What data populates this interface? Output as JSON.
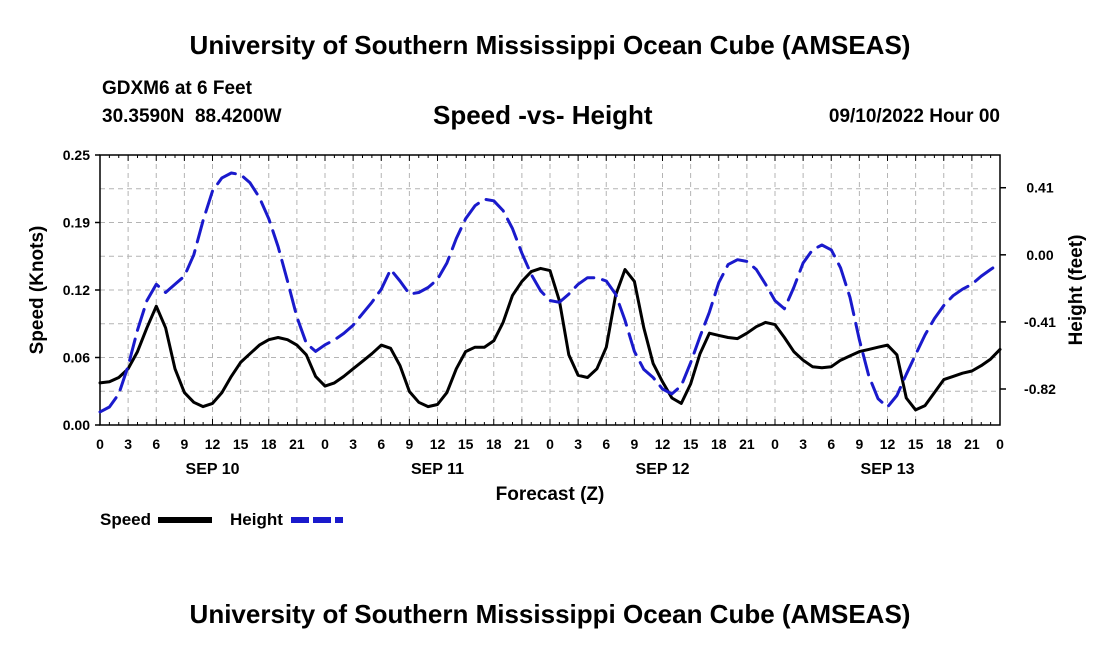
{
  "page": {
    "title": "University of Southern Mississippi Ocean Cube (AMSEAS)",
    "station": "GDXM6 at 6 Feet",
    "coords": "30.3590N  88.4200W",
    "subtitle": "Speed -vs- Height",
    "date": "09/10/2022 Hour 00",
    "footer_title": "University of Southern Mississippi Ocean Cube (AMSEAS)"
  },
  "legend": {
    "speed_label": "Speed",
    "height_label": "Height"
  },
  "colors": {
    "speed": "#000000",
    "height": "#1a1acc",
    "grid": "#b4b4b4"
  },
  "chart_data": {
    "type": "line",
    "title": "Speed -vs- Height",
    "xlabel": "Forecast (Z)",
    "ylabel_left": "Speed (Knots)",
    "ylabel_right": "Height (feet)",
    "xlim": [
      0,
      96
    ],
    "ylim_left": [
      0,
      0.25
    ],
    "ylim_right": [
      -1.04,
      0.61
    ],
    "left_ticks": [
      {
        "value": 0,
        "label": "0.00"
      },
      {
        "value": 0.0625,
        "label": "0.06"
      },
      {
        "value": 0.125,
        "label": "0.12"
      },
      {
        "value": 0.1875,
        "label": "0.19"
      },
      {
        "value": 0.25,
        "label": "0.25"
      }
    ],
    "right_ticks": [
      {
        "value": 0.41,
        "label": "0.41"
      },
      {
        "value": 0.0,
        "label": "0.00"
      },
      {
        "value": -0.41,
        "label": "-0.41"
      },
      {
        "value": -0.82,
        "label": "-0.82"
      }
    ],
    "x_ticks": [
      "0",
      "3",
      "6",
      "9",
      "12",
      "15",
      "18",
      "21",
      "0",
      "3",
      "6",
      "9",
      "12",
      "15",
      "18",
      "21",
      "0",
      "3",
      "6",
      "9",
      "12",
      "15",
      "18",
      "21",
      "0",
      "3",
      "6",
      "9",
      "12",
      "15",
      "18",
      "21",
      "0"
    ],
    "day_labels": [
      {
        "hour": 12,
        "label": "SEP 10"
      },
      {
        "hour": 36,
        "label": "SEP 11"
      },
      {
        "hour": 60,
        "label": "SEP 12"
      },
      {
        "hour": 84,
        "label": "SEP 13"
      }
    ],
    "series": [
      {
        "name": "Speed",
        "axis": "left",
        "style": "solid",
        "x": [
          0,
          1,
          2,
          3,
          4,
          5,
          6,
          7,
          8,
          9,
          10,
          11,
          12,
          13,
          14,
          15,
          16,
          17,
          18,
          19,
          20,
          21,
          22,
          23,
          24,
          25,
          26,
          27,
          28,
          29,
          30,
          31,
          32,
          33,
          34,
          35,
          36,
          37,
          38,
          39,
          40,
          41,
          42,
          43,
          44,
          45,
          46,
          47,
          48,
          49,
          50,
          51,
          52,
          53,
          54,
          55,
          56,
          57,
          58,
          59,
          60,
          61,
          62,
          63,
          64,
          65,
          66,
          67,
          68,
          69,
          70,
          71,
          72,
          73,
          74,
          75,
          76,
          77,
          78,
          79,
          80,
          81,
          82,
          83,
          84,
          85,
          86,
          87,
          88,
          89,
          90,
          91,
          92,
          93,
          94,
          95,
          96
        ],
        "values": [
          0.039,
          0.04,
          0.044,
          0.052,
          0.068,
          0.09,
          0.11,
          0.09,
          0.052,
          0.03,
          0.021,
          0.017,
          0.02,
          0.03,
          0.045,
          0.058,
          0.066,
          0.074,
          0.079,
          0.081,
          0.079,
          0.074,
          0.065,
          0.045,
          0.036,
          0.039,
          0.045,
          0.052,
          0.059,
          0.066,
          0.074,
          0.071,
          0.055,
          0.031,
          0.021,
          0.017,
          0.019,
          0.03,
          0.052,
          0.068,
          0.072,
          0.072,
          0.078,
          0.095,
          0.12,
          0.133,
          0.142,
          0.145,
          0.143,
          0.115,
          0.065,
          0.046,
          0.044,
          0.052,
          0.072,
          0.12,
          0.144,
          0.133,
          0.09,
          0.057,
          0.04,
          0.025,
          0.02,
          0.038,
          0.066,
          0.085,
          0.083,
          0.081,
          0.08,
          0.085,
          0.091,
          0.095,
          0.093,
          0.081,
          0.068,
          0.06,
          0.054,
          0.053,
          0.054,
          0.06,
          0.064,
          0.068,
          0.07,
          0.072,
          0.074,
          0.065,
          0.025,
          0.014,
          0.018,
          0.03,
          0.042,
          0.045,
          0.048,
          0.05,
          0.055,
          0.061,
          0.07
        ]
      },
      {
        "name": "Height",
        "axis": "right",
        "style": "dashed",
        "x": [
          0,
          1,
          2,
          3,
          4,
          5,
          6,
          7,
          8,
          9,
          10,
          11,
          12,
          13,
          14,
          15,
          16,
          17,
          18,
          19,
          20,
          21,
          22,
          23,
          24,
          25,
          26,
          27,
          28,
          29,
          30,
          31,
          32,
          33,
          34,
          35,
          36,
          37,
          38,
          39,
          40,
          41,
          42,
          43,
          44,
          45,
          46,
          47,
          48,
          49,
          50,
          51,
          52,
          53,
          54,
          55,
          56,
          57,
          58,
          59,
          60,
          61,
          62,
          63,
          64,
          65,
          66,
          67,
          68,
          69,
          70,
          71,
          72,
          73,
          74,
          75,
          76,
          77,
          78,
          79,
          80,
          81,
          82,
          83,
          84,
          85,
          86,
          87,
          88,
          89,
          90,
          91,
          92,
          93,
          94,
          95,
          96
        ],
        "values": [
          -0.96,
          -0.93,
          -0.85,
          -0.68,
          -0.46,
          -0.28,
          -0.18,
          -0.23,
          -0.18,
          -0.13,
          0.0,
          0.21,
          0.39,
          0.47,
          0.5,
          0.49,
          0.44,
          0.35,
          0.22,
          0.05,
          -0.16,
          -0.38,
          -0.54,
          -0.59,
          -0.55,
          -0.52,
          -0.48,
          -0.43,
          -0.36,
          -0.29,
          -0.21,
          -0.09,
          -0.16,
          -0.24,
          -0.23,
          -0.2,
          -0.15,
          -0.05,
          0.1,
          0.22,
          0.3,
          0.34,
          0.33,
          0.27,
          0.16,
          0.01,
          -0.12,
          -0.22,
          -0.28,
          -0.29,
          -0.24,
          -0.18,
          -0.14,
          -0.14,
          -0.16,
          -0.24,
          -0.4,
          -0.59,
          -0.7,
          -0.75,
          -0.82,
          -0.85,
          -0.8,
          -0.66,
          -0.5,
          -0.35,
          -0.17,
          -0.06,
          -0.03,
          -0.04,
          -0.09,
          -0.18,
          -0.28,
          -0.33,
          -0.2,
          -0.05,
          0.03,
          0.06,
          0.03,
          -0.08,
          -0.26,
          -0.52,
          -0.74,
          -0.88,
          -0.93,
          -0.86,
          -0.73,
          -0.61,
          -0.49,
          -0.39,
          -0.31,
          -0.25,
          -0.21,
          -0.18,
          -0.13,
          -0.09,
          -0.05
        ]
      }
    ]
  }
}
